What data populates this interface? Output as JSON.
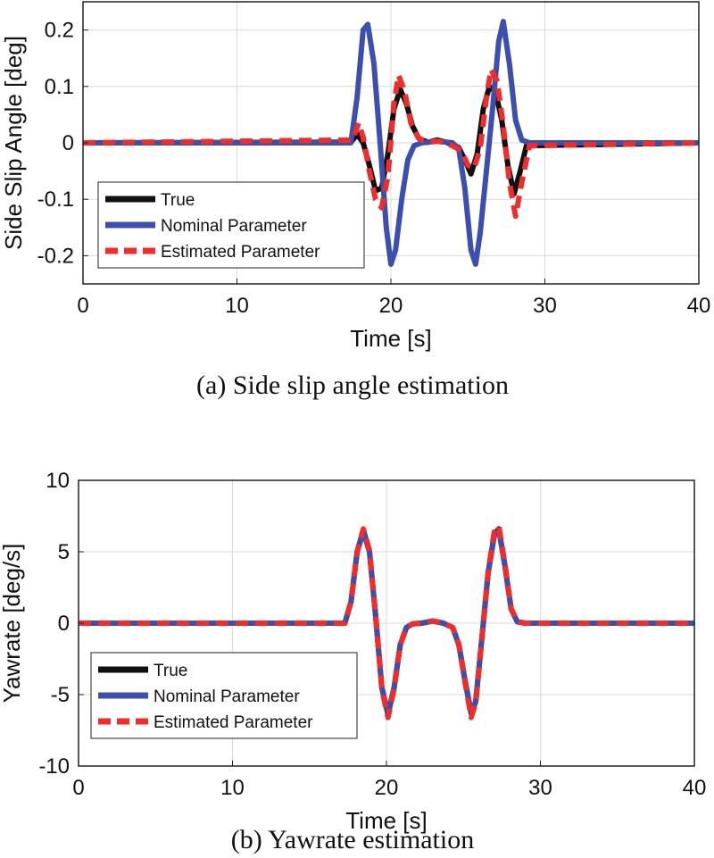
{
  "colors": {
    "true": "#111111",
    "nominal": "#3c4fae",
    "estimated": "#ee2d2d",
    "grid": "#d9d9d9",
    "axis": "#222222"
  },
  "chart_data": [
    {
      "type": "line",
      "caption": "(a) Side slip angle estimation",
      "xlabel": "Time [s]",
      "ylabel": "Side Slip Angle [deg]",
      "xlim": [
        0,
        40
      ],
      "ylim": [
        -0.25,
        0.25
      ],
      "xticks": [
        0,
        10,
        20,
        30,
        40
      ],
      "yticks": [
        -0.2,
        -0.1,
        0,
        0.1,
        0.2
      ],
      "xtick_labels": [
        "0",
        "10",
        "20",
        "30",
        "40"
      ],
      "ytick_labels": [
        "-0.2",
        "-0.1",
        "0",
        "0.1",
        "0.2"
      ],
      "grid": true,
      "legend_position": "bottom-left",
      "series": [
        {
          "name": "True",
          "x": [
            0,
            17.4,
            17.8,
            18.2,
            18.6,
            19.0,
            19.4,
            19.8,
            20.2,
            20.6,
            21.0,
            21.4,
            21.8,
            22.4,
            23.0,
            23.6,
            24.0,
            24.4,
            24.8,
            25.2,
            25.6,
            26.0,
            26.4,
            26.8,
            27.2,
            27.6,
            28.0,
            28.4,
            28.8,
            40
          ],
          "y": [
            0,
            0.001,
            0.015,
            0.0,
            -0.04,
            -0.085,
            -0.08,
            -0.02,
            0.06,
            0.095,
            0.07,
            0.03,
            0.008,
            0.001,
            0.005,
            0.001,
            -0.003,
            -0.008,
            -0.03,
            -0.055,
            -0.02,
            0.06,
            0.1,
            0.09,
            0.04,
            -0.04,
            -0.09,
            -0.05,
            -0.005,
            0
          ]
        },
        {
          "name": "Nominal Parameter",
          "x": [
            0,
            17.4,
            17.8,
            18.2,
            18.5,
            18.9,
            19.3,
            19.7,
            20.0,
            20.3,
            20.7,
            21.1,
            21.5,
            22.0,
            23.0,
            24.0,
            24.4,
            24.8,
            25.2,
            25.5,
            25.8,
            26.2,
            26.6,
            27.0,
            27.3,
            27.7,
            28.1,
            28.5,
            29.0,
            40
          ],
          "y": [
            0,
            0.0,
            0.08,
            0.2,
            0.21,
            0.14,
            0.0,
            -0.15,
            -0.215,
            -0.19,
            -0.1,
            -0.03,
            -0.005,
            0.0,
            0.003,
            0.0,
            -0.01,
            -0.08,
            -0.19,
            -0.215,
            -0.16,
            -0.05,
            0.06,
            0.18,
            0.215,
            0.14,
            0.04,
            0.005,
            0.0,
            0
          ]
        },
        {
          "name": "Estimated Parameter",
          "x": [
            0,
            17.5,
            17.9,
            18.2,
            18.6,
            19.0,
            19.4,
            19.8,
            20.2,
            20.5,
            20.9,
            21.3,
            21.8,
            22.4,
            23.0,
            23.6,
            24.2,
            24.6,
            25.0,
            25.4,
            25.8,
            26.2,
            26.5,
            26.9,
            27.3,
            27.7,
            28.1,
            28.5,
            29.0,
            40
          ],
          "y": [
            0,
            0.005,
            0.035,
            0.01,
            -0.05,
            -0.1,
            -0.115,
            -0.06,
            0.07,
            0.12,
            0.09,
            0.035,
            0.008,
            0.001,
            0.003,
            0.0,
            -0.008,
            -0.015,
            -0.04,
            -0.045,
            -0.01,
            0.08,
            0.13,
            0.11,
            0.03,
            -0.07,
            -0.13,
            -0.07,
            -0.005,
            0
          ]
        }
      ]
    },
    {
      "type": "line",
      "caption": "(b) Yawrate estimation",
      "xlabel": "Time [s]",
      "ylabel": "Yawrate [deg/s]",
      "xlim": [
        0,
        40
      ],
      "ylim": [
        -10,
        10
      ],
      "xticks": [
        0,
        10,
        20,
        30,
        40
      ],
      "yticks": [
        -10,
        -5,
        0,
        5,
        10
      ],
      "xtick_labels": [
        "0",
        "10",
        "20",
        "30",
        "40"
      ],
      "ytick_labels": [
        "-10",
        "-5",
        "0",
        "5",
        "10"
      ],
      "grid": true,
      "legend_position": "bottom-left",
      "series": [
        {
          "name": "True",
          "x": [
            0,
            17.3,
            17.7,
            18.1,
            18.5,
            18.9,
            19.3,
            19.7,
            20.1,
            20.5,
            20.9,
            21.3,
            21.7,
            22.3,
            23.0,
            23.7,
            24.3,
            24.7,
            25.1,
            25.5,
            25.8,
            26.2,
            26.6,
            27.0,
            27.3,
            27.7,
            28.1,
            28.5,
            29.0,
            40
          ],
          "y": [
            0,
            0.0,
            1.5,
            5.0,
            6.5,
            5.0,
            0.5,
            -4.5,
            -6.4,
            -4.5,
            -1.5,
            -0.3,
            -0.05,
            0.0,
            0.15,
            0.0,
            -0.3,
            -1.5,
            -4.0,
            -6.3,
            -5.5,
            -1.0,
            3.5,
            6.2,
            6.6,
            4.0,
            1.0,
            0.1,
            0.0,
            0
          ]
        },
        {
          "name": "Nominal Parameter",
          "x": [
            0,
            17.3,
            17.7,
            18.1,
            18.5,
            18.9,
            19.3,
            19.7,
            20.1,
            20.5,
            20.9,
            21.3,
            21.7,
            22.3,
            23.0,
            23.7,
            24.3,
            24.7,
            25.1,
            25.5,
            25.8,
            26.2,
            26.6,
            27.0,
            27.3,
            27.7,
            28.1,
            28.5,
            29.0,
            40
          ],
          "y": [
            0,
            0.0,
            1.5,
            5.0,
            6.4,
            5.0,
            0.5,
            -4.5,
            -6.3,
            -4.5,
            -1.5,
            -0.3,
            -0.05,
            0.0,
            0.15,
            0.0,
            -0.3,
            -1.5,
            -4.0,
            -6.2,
            -5.5,
            -1.0,
            3.5,
            6.1,
            6.5,
            4.0,
            1.0,
            0.1,
            0.0,
            0
          ]
        },
        {
          "name": "Estimated Parameter",
          "x": [
            0,
            17.3,
            17.7,
            18.1,
            18.5,
            18.9,
            19.3,
            19.7,
            20.1,
            20.5,
            20.9,
            21.3,
            21.7,
            22.3,
            23.0,
            23.7,
            24.3,
            24.7,
            25.1,
            25.5,
            25.8,
            26.2,
            26.6,
            27.0,
            27.3,
            27.7,
            28.1,
            28.5,
            29.0,
            40
          ],
          "y": [
            0,
            0.0,
            1.5,
            5.0,
            6.6,
            5.1,
            0.5,
            -4.6,
            -6.6,
            -4.6,
            -1.5,
            -0.3,
            -0.05,
            0.0,
            0.15,
            0.0,
            -0.3,
            -1.5,
            -4.1,
            -6.6,
            -5.6,
            -1.0,
            3.6,
            6.4,
            6.8,
            4.1,
            1.0,
            0.1,
            0.0,
            0
          ]
        }
      ]
    }
  ]
}
